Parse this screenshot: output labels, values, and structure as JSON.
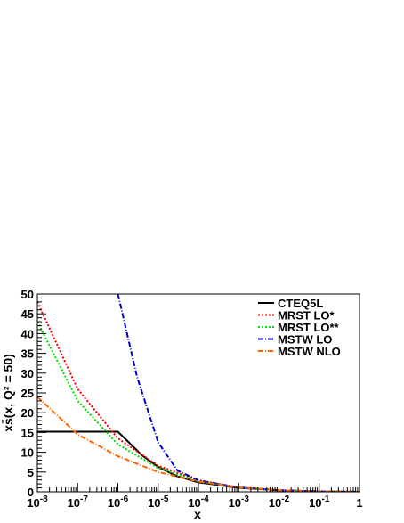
{
  "chart_data": {
    "type": "line",
    "xscale": "log",
    "xlim": [
      1e-08,
      1
    ],
    "ylim": [
      0,
      50
    ],
    "xlabel": "x",
    "ylabel": "xs̄(x, Q² = 50)",
    "x_tick_labels": [
      {
        "x": 1e-08,
        "base": "10",
        "exp": "-8"
      },
      {
        "x": 1e-07,
        "base": "10",
        "exp": "-7"
      },
      {
        "x": 1e-06,
        "base": "10",
        "exp": "-6"
      },
      {
        "x": 1e-05,
        "base": "10",
        "exp": "-5"
      },
      {
        "x": 0.0001,
        "base": "10",
        "exp": "-4"
      },
      {
        "x": 0.001,
        "base": "10",
        "exp": "-3"
      },
      {
        "x": 0.01,
        "base": "10",
        "exp": "-2"
      },
      {
        "x": 0.1,
        "base": "10",
        "exp": "-1"
      },
      {
        "x": 1,
        "base": "1",
        "exp": ""
      }
    ],
    "y_ticks": [
      0,
      5,
      10,
      15,
      20,
      25,
      30,
      35,
      40,
      45,
      50
    ],
    "legend_position": "top-right",
    "series": [
      {
        "name": "CTEQ5L",
        "color": "#000000",
        "dash": "solid",
        "x": [
          1e-08,
          1e-07,
          1e-06,
          2e-06,
          4e-06,
          1e-05,
          3e-05,
          0.0001,
          0.001,
          0.01,
          0.1,
          1
        ],
        "y": [
          15.2,
          15.2,
          15.2,
          12.2,
          9.2,
          6.3,
          3.9,
          2.4,
          1.0,
          0.4,
          0.1,
          0
        ]
      },
      {
        "name": "MRST LO*",
        "color": "#ff0000",
        "dash": "dotted",
        "x": [
          1e-08,
          1e-07,
          1e-06,
          1e-05,
          0.0001,
          0.001,
          0.01,
          0.1,
          1
        ],
        "y": [
          48.0,
          26.0,
          13.5,
          6.6,
          2.9,
          1.15,
          0.4,
          0.1,
          0
        ]
      },
      {
        "name": "MRST LO**",
        "color": "#00dd00",
        "dash": "dotted",
        "x": [
          1e-08,
          1e-07,
          1e-06,
          1e-05,
          0.0001,
          0.001,
          0.01,
          0.1,
          1
        ],
        "y": [
          43.0,
          23.0,
          12.0,
          6.0,
          2.7,
          1.1,
          0.4,
          0.1,
          0
        ]
      },
      {
        "name": "MSTW LO",
        "color": "#0000cc",
        "dash": "dashdot",
        "x": [
          1e-06,
          3e-06,
          1e-05,
          3e-05,
          0.0001,
          0.001,
          0.01,
          0.1,
          1
        ],
        "y": [
          50.0,
          29.0,
          12.5,
          5.4,
          2.9,
          1.1,
          0.4,
          0.1,
          0
        ]
      },
      {
        "name": "MSTW NLO",
        "color": "#ff6600",
        "dash": "dashdot",
        "x": [
          1e-08,
          1e-07,
          1e-06,
          1e-05,
          0.0001,
          0.001,
          0.01,
          0.1,
          1
        ],
        "y": [
          24.0,
          14.5,
          9.0,
          5.0,
          2.6,
          1.1,
          0.4,
          0.1,
          0
        ]
      }
    ]
  }
}
